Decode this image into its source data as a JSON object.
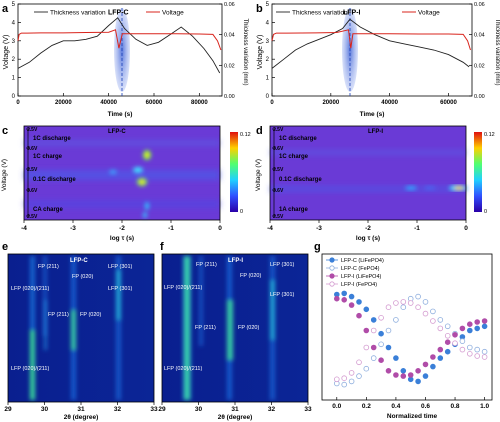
{
  "panels": {
    "a": {
      "letter": "a",
      "label": "LFP-C",
      "legend": [
        "Thickness variation",
        "Voltage"
      ],
      "xlabel": "Time (s)",
      "ylabel_left": "Voltage (V)",
      "ylabel_right": "Thickness variation (mm)",
      "xticks": [
        "0",
        "20000",
        "40000",
        "60000",
        "80000"
      ],
      "yticks_left": [
        "0",
        "1",
        "2",
        "3",
        "4",
        "5"
      ],
      "yticks_right": [
        "0.00",
        "0.02",
        "0.04",
        "0.06"
      ]
    },
    "b": {
      "letter": "b",
      "label": "LFP-I",
      "legend": [
        "Thickness variation",
        "Voltage"
      ],
      "xlabel": "Time (s)",
      "ylabel_left": "Voltage (V)",
      "ylabel_right": "Thickness variation (mm)",
      "xticks": [
        "0",
        "20000",
        "40000",
        "60000"
      ],
      "yticks_left": [
        "0",
        "1",
        "2",
        "3",
        "4",
        "5"
      ],
      "yticks_right": [
        "0.00",
        "0.02",
        "0.04",
        "0.06"
      ]
    },
    "c": {
      "letter": "c",
      "label": "LFP-C",
      "xlabel": "log τ (s)",
      "ylabel": "Voltage (V)",
      "xticks": [
        "-4",
        "-3",
        "-2",
        "-1",
        "0"
      ],
      "vlabels": [
        "2.5V",
        "3.6V",
        "2.5V",
        "3.6V",
        "2.5V"
      ],
      "steps": [
        "1C discharge",
        "1C charge",
        "0.1C discharge",
        "CA charge"
      ],
      "cbar": [
        "0.12",
        "0"
      ]
    },
    "d": {
      "letter": "d",
      "label": "LFP-I",
      "xlabel": "log τ (s)",
      "ylabel": "Voltage (V)",
      "xticks": [
        "-4",
        "-3",
        "-2",
        "-1",
        "0"
      ],
      "vlabels": [
        "2.5V",
        "3.6V",
        "2.5V",
        "3.6V",
        "2.5V"
      ],
      "steps": [
        "1C discharge",
        "1C charge",
        "0.1C discharge",
        "1A charge"
      ],
      "cbar": [
        "0.12",
        "0"
      ]
    },
    "e": {
      "letter": "e",
      "label": "LFP-C",
      "xlabel": "2θ (degree)",
      "xticks": [
        "29",
        "30",
        "31",
        "32",
        "33"
      ],
      "peaks": [
        "FP (211)",
        "FP (020)",
        "LFP (301)",
        "LFP (020)/(211)",
        "LFP (301)",
        "FP (211)",
        "FP (020)",
        "LFP (020)/(211)"
      ]
    },
    "f": {
      "letter": "f",
      "label": "LFP-I",
      "xlabel": "2θ (degree)",
      "xticks": [
        "29",
        "30",
        "31",
        "32",
        "33"
      ],
      "peaks": [
        "FP (211)",
        "FP (020)",
        "LFP (301)",
        "LFP (020)/(211)",
        "LFP (301)",
        "FP (211)",
        "FP (020)",
        "LFP (020)/(211)"
      ]
    },
    "g": {
      "letter": "g",
      "xlabel": "Normalized time",
      "xticks": [
        "0.0",
        "0.2",
        "0.4",
        "0.6",
        "0.8",
        "1.0"
      ],
      "legend": [
        "LFP-C (LiFePO4)",
        "LFP-C (FePO4)",
        "LFP-I (LiFePO4)",
        "LFP-I (FePO4)"
      ]
    }
  },
  "colors": {
    "thickness": "#222222",
    "voltage": "#d9241c",
    "highlight": "#4a6fd1",
    "lfpc_li": "#3a7fd8",
    "lfpc_fe": "#8eaede",
    "lfpi_li": "#b04ca8",
    "lfpi_fe": "#d49bd0"
  },
  "chart_data": [
    {
      "type": "line",
      "panel": "a",
      "title": "LFP-C",
      "xlabel": "Time (s)",
      "ylabel": "Voltage (V)",
      "xlim": [
        0,
        90000
      ],
      "ylim": [
        0,
        5
      ],
      "series": [
        {
          "name": "Thickness variation",
          "axis": "right",
          "x": [
            0,
            5000,
            10000,
            15000,
            20000,
            25000,
            30000,
            35000,
            40000,
            44000,
            47000,
            52000,
            57000,
            62000,
            67000,
            72000,
            77000,
            82000,
            86000,
            89000
          ],
          "values": [
            0.018,
            0.022,
            0.028,
            0.033,
            0.036,
            0.036,
            0.037,
            0.039,
            0.046,
            0.051,
            0.044,
            0.037,
            0.033,
            0.035,
            0.04,
            0.045,
            0.039,
            0.031,
            0.023,
            0.015
          ]
        },
        {
          "name": "Voltage",
          "axis": "left",
          "x": [
            0,
            500,
            1500,
            4000,
            10000,
            20000,
            30000,
            40000,
            43000,
            44500,
            46000,
            50000,
            60000,
            70000,
            80000,
            86000,
            88000,
            89500
          ],
          "values": [
            3.0,
            3.35,
            3.42,
            3.42,
            3.43,
            3.43,
            3.45,
            3.47,
            3.6,
            2.6,
            3.38,
            3.38,
            3.38,
            3.38,
            3.37,
            3.35,
            3.0,
            2.5
          ]
        }
      ]
    },
    {
      "type": "line",
      "panel": "b",
      "title": "LFP-I",
      "xlabel": "Time (s)",
      "ylabel": "Voltage (V)",
      "xlim": [
        0,
        68000
      ],
      "ylim": [
        0,
        5
      ],
      "series": [
        {
          "name": "Thickness variation",
          "axis": "right",
          "x": [
            0,
            4000,
            8000,
            12000,
            16000,
            20000,
            24000,
            26500,
            30000,
            35000,
            40000,
            45000,
            50000,
            55000,
            60000,
            65000,
            67000
          ],
          "values": [
            0.018,
            0.024,
            0.03,
            0.034,
            0.037,
            0.04,
            0.044,
            0.05,
            0.045,
            0.04,
            0.036,
            0.034,
            0.032,
            0.03,
            0.027,
            0.022,
            0.019
          ]
        },
        {
          "name": "Voltage",
          "axis": "left",
          "x": [
            0,
            500,
            1500,
            5000,
            15000,
            22000,
            26000,
            26800,
            27500,
            30000,
            40000,
            50000,
            60000,
            65000,
            66500,
            67500
          ],
          "values": [
            3.0,
            3.35,
            3.42,
            3.42,
            3.43,
            3.45,
            3.6,
            2.6,
            3.38,
            3.38,
            3.38,
            3.37,
            3.37,
            3.35,
            3.0,
            2.5
          ]
        }
      ]
    },
    {
      "type": "heatmap",
      "panel": "c",
      "title": "LFP-C",
      "xlabel": "log τ (s)",
      "ylabel": "Voltage (V)",
      "xlim": [
        -4,
        0
      ],
      "clim": [
        0,
        0.12
      ],
      "hotspots": [
        {
          "x": -1.5,
          "v": 0.08
        },
        {
          "x": -1.65,
          "v": 0.1
        },
        {
          "x": -1.6,
          "v": 0.1
        },
        {
          "x": -2.2,
          "v": 0.04
        }
      ]
    },
    {
      "type": "heatmap",
      "panel": "d",
      "title": "LFP-I",
      "xlabel": "log τ (s)",
      "ylabel": "Voltage (V)",
      "xlim": [
        -4,
        0
      ],
      "clim": [
        0,
        0.12
      ],
      "hotspots": [
        {
          "x": -0.15,
          "v": 0.1
        },
        {
          "x": -1.1,
          "v": 0.05
        }
      ]
    },
    {
      "type": "heatmap",
      "panel": "e",
      "title": "LFP-C",
      "xlabel": "2θ (degree)",
      "xlim": [
        29,
        33
      ],
      "peaks_2theta": [
        29.6,
        30.2,
        30.75,
        32.2
      ]
    },
    {
      "type": "heatmap",
      "panel": "f",
      "title": "LFP-I",
      "xlabel": "2θ (degree)",
      "xlim": [
        29,
        33
      ],
      "peaks_2theta": [
        29.6,
        30.25,
        30.8,
        32.2
      ]
    },
    {
      "type": "scatter",
      "panel": "g",
      "xlabel": "Normalized time",
      "xlim": [
        -0.1,
        1.05
      ],
      "ylim": [
        0,
        1
      ],
      "series": [
        {
          "name": "LFP-C (LiFePO4)",
          "x": [
            0.0,
            0.05,
            0.1,
            0.15,
            0.2,
            0.25,
            0.3,
            0.35,
            0.4,
            0.45,
            0.5,
            0.55,
            0.6,
            0.65,
            0.7,
            0.75,
            0.8,
            0.85,
            0.9,
            0.95,
            1.0
          ],
          "values": [
            0.92,
            0.93,
            0.9,
            0.85,
            0.78,
            0.68,
            0.55,
            0.42,
            0.32,
            0.2,
            0.12,
            0.1,
            0.15,
            0.24,
            0.32,
            0.38,
            0.45,
            0.52,
            0.58,
            0.6,
            0.62
          ]
        },
        {
          "name": "LFP-C (FePO4)",
          "x": [
            0.0,
            0.05,
            0.1,
            0.15,
            0.2,
            0.25,
            0.3,
            0.35,
            0.4,
            0.45,
            0.5,
            0.55,
            0.6,
            0.65,
            0.7,
            0.75,
            0.8,
            0.85,
            0.9,
            0.95,
            1.0
          ],
          "values": [
            0.08,
            0.07,
            0.1,
            0.15,
            0.22,
            0.32,
            0.45,
            0.58,
            0.68,
            0.8,
            0.88,
            0.9,
            0.85,
            0.76,
            0.68,
            0.62,
            0.55,
            0.48,
            0.42,
            0.4,
            0.38
          ]
        },
        {
          "name": "LFP-I (LiFePO4)",
          "x": [
            0.0,
            0.05,
            0.1,
            0.15,
            0.2,
            0.25,
            0.3,
            0.35,
            0.4,
            0.45,
            0.5,
            0.55,
            0.6,
            0.65,
            0.7,
            0.75,
            0.8,
            0.85,
            0.9,
            0.95,
            1.0
          ],
          "values": [
            0.88,
            0.87,
            0.82,
            0.72,
            0.58,
            0.42,
            0.3,
            0.2,
            0.16,
            0.15,
            0.16,
            0.2,
            0.26,
            0.33,
            0.4,
            0.47,
            0.54,
            0.6,
            0.64,
            0.66,
            0.67
          ]
        },
        {
          "name": "LFP-I (FePO4)",
          "x": [
            0.0,
            0.05,
            0.1,
            0.15,
            0.2,
            0.25,
            0.3,
            0.35,
            0.4,
            0.45,
            0.5,
            0.55,
            0.6,
            0.65,
            0.7,
            0.75,
            0.8,
            0.85,
            0.9,
            0.95,
            1.0
          ],
          "values": [
            0.12,
            0.13,
            0.18,
            0.28,
            0.42,
            0.58,
            0.7,
            0.8,
            0.84,
            0.85,
            0.84,
            0.8,
            0.74,
            0.67,
            0.6,
            0.53,
            0.46,
            0.4,
            0.36,
            0.34,
            0.33
          ]
        }
      ]
    }
  ]
}
